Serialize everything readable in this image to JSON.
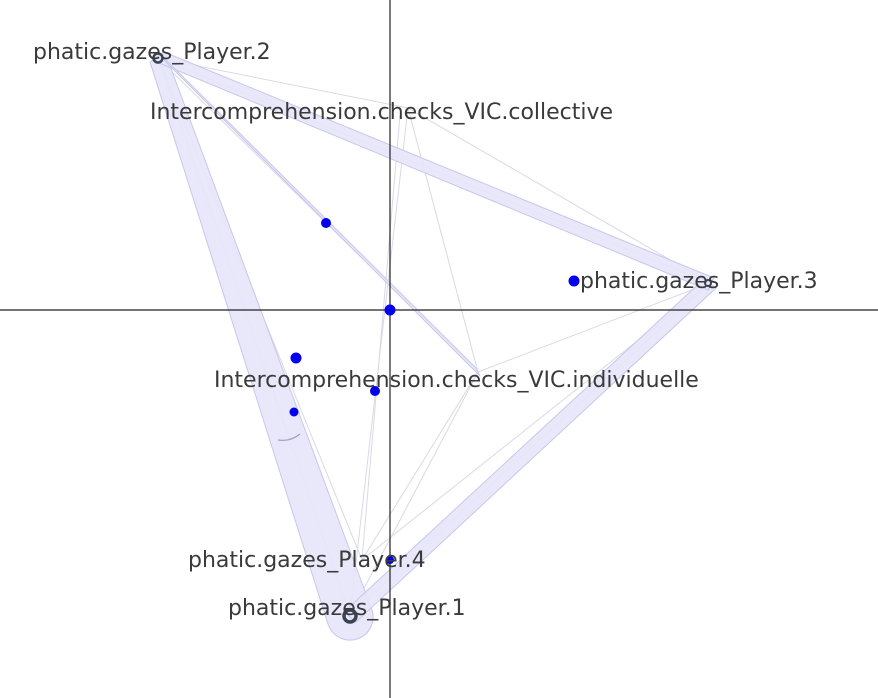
{
  "network": {
    "nodes": [
      {
        "id": "phatic_gazes_player_2",
        "label": "phatic.gazes_Player.2",
        "marker": "ring"
      },
      {
        "id": "intercomp_collective",
        "label": "Intercomprehension.checks_VIC.collective",
        "marker": "none"
      },
      {
        "id": "phatic_gazes_player_3",
        "label": "phatic.gazes_Player.3",
        "marker": "ring-small"
      },
      {
        "id": "intercomp_individuelle",
        "label": "Intercomprehension.checks_VIC.individuelle",
        "marker": "none"
      },
      {
        "id": "phatic_gazes_player_4",
        "label": "phatic.gazes_Player.4",
        "marker": "none"
      },
      {
        "id": "phatic_gazes_player_1",
        "label": "phatic.gazes_Player.1",
        "marker": "ring-large"
      }
    ],
    "unlabeled_points": 7,
    "colors": {
      "edge_fill": "#e6e6fa",
      "edge_stroke": "#c7c7ea",
      "thin_edge": "#d9d9e6",
      "point": "#0000ee",
      "node_ring": "#3b4252",
      "axis": "#222222",
      "label": "#3a3a3a"
    }
  }
}
